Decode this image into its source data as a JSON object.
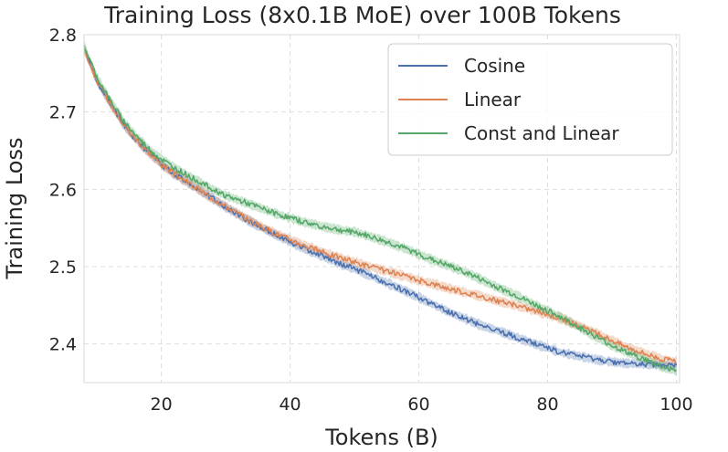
{
  "chart_data": {
    "type": "line",
    "title": "Training Loss (8x0.1B MoE) over 100B Tokens",
    "xlabel": "Tokens (B)",
    "ylabel": "Training Loss",
    "xlim": [
      8,
      100.5
    ],
    "ylim": [
      2.35,
      2.8
    ],
    "xticks": [
      20,
      40,
      60,
      80,
      100
    ],
    "yticks": [
      2.4,
      2.5,
      2.6,
      2.7,
      2.8
    ],
    "xtick_labels": [
      "20",
      "40",
      "60",
      "80",
      "100"
    ],
    "ytick_labels": [
      "2.4",
      "2.5",
      "2.6",
      "2.7",
      "2.8"
    ],
    "grid": true,
    "legend_position": "top-right",
    "series": [
      {
        "name": "Cosine",
        "color": "#4c72b0",
        "x": [
          8,
          10,
          12,
          14,
          16,
          18,
          20,
          22,
          25,
          28,
          30,
          32,
          35,
          38,
          40,
          42,
          45,
          48,
          50,
          52,
          55,
          58,
          60,
          62,
          65,
          68,
          70,
          72,
          75,
          78,
          80,
          82,
          85,
          88,
          90,
          92,
          95,
          98,
          100
        ],
        "y": [
          2.782,
          2.74,
          2.712,
          2.685,
          2.665,
          2.648,
          2.632,
          2.62,
          2.604,
          2.588,
          2.577,
          2.567,
          2.553,
          2.54,
          2.532,
          2.524,
          2.514,
          2.503,
          2.497,
          2.49,
          2.479,
          2.468,
          2.46,
          2.452,
          2.44,
          2.43,
          2.423,
          2.418,
          2.409,
          2.4,
          2.395,
          2.389,
          2.384,
          2.379,
          2.377,
          2.375,
          2.374,
          2.372,
          2.372
        ]
      },
      {
        "name": "Linear",
        "color": "#dd8452",
        "x": [
          8,
          10,
          12,
          14,
          16,
          18,
          20,
          22,
          25,
          28,
          30,
          32,
          35,
          38,
          40,
          42,
          45,
          48,
          50,
          52,
          55,
          58,
          60,
          62,
          65,
          68,
          70,
          72,
          75,
          78,
          80,
          82,
          85,
          88,
          90,
          92,
          95,
          98,
          100
        ],
        "y": [
          2.782,
          2.74,
          2.712,
          2.685,
          2.665,
          2.648,
          2.632,
          2.62,
          2.604,
          2.588,
          2.578,
          2.568,
          2.554,
          2.542,
          2.535,
          2.528,
          2.519,
          2.511,
          2.506,
          2.501,
          2.494,
          2.487,
          2.482,
          2.478,
          2.471,
          2.465,
          2.461,
          2.456,
          2.45,
          2.443,
          2.438,
          2.433,
          2.423,
          2.412,
          2.405,
          2.397,
          2.388,
          2.38,
          2.377
        ]
      },
      {
        "name": "Const and Linear",
        "color": "#55a868",
        "x": [
          8,
          10,
          12,
          14,
          16,
          18,
          20,
          22,
          25,
          28,
          30,
          32,
          35,
          38,
          40,
          42,
          45,
          48,
          50,
          52,
          55,
          58,
          60,
          62,
          65,
          68,
          70,
          72,
          75,
          78,
          80,
          82,
          85,
          88,
          90,
          92,
          95,
          98,
          100
        ],
        "y": [
          2.786,
          2.745,
          2.716,
          2.69,
          2.67,
          2.653,
          2.639,
          2.628,
          2.614,
          2.6,
          2.592,
          2.586,
          2.577,
          2.568,
          2.563,
          2.558,
          2.552,
          2.547,
          2.545,
          2.54,
          2.532,
          2.523,
          2.516,
          2.509,
          2.5,
          2.49,
          2.482,
          2.474,
          2.463,
          2.451,
          2.443,
          2.435,
          2.421,
          2.407,
          2.398,
          2.39,
          2.38,
          2.37,
          2.366
        ]
      }
    ]
  }
}
